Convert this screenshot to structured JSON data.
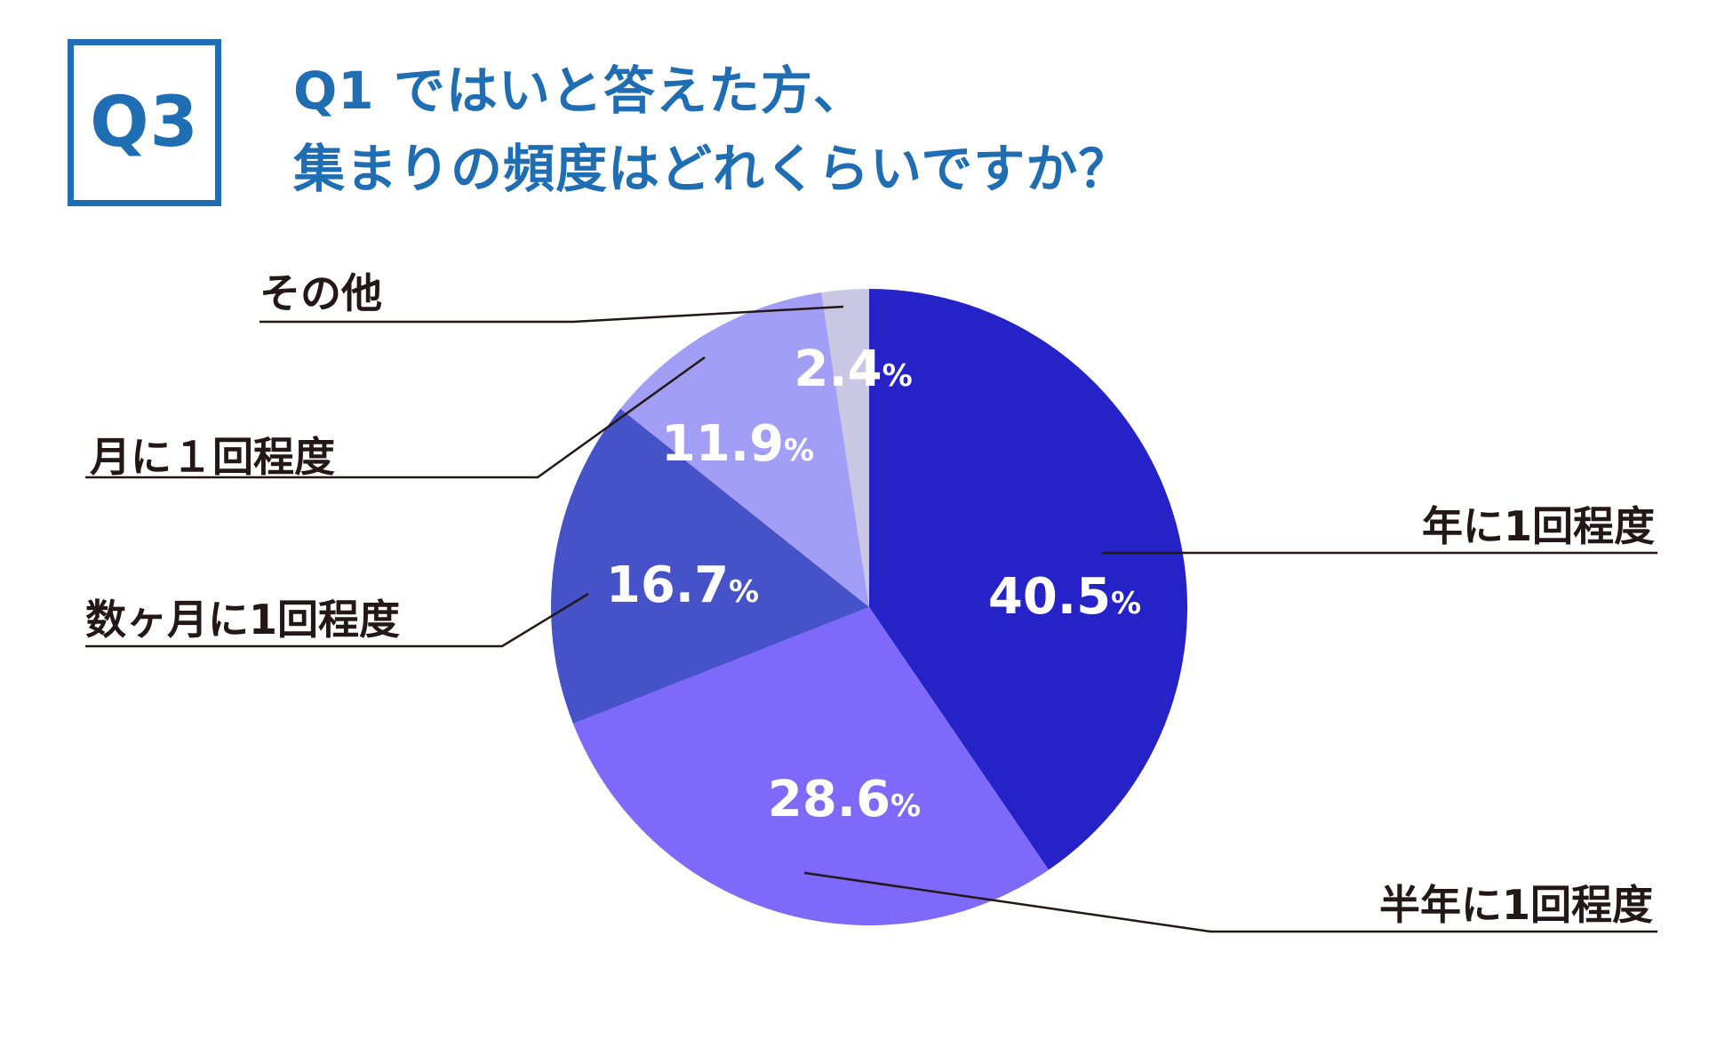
{
  "badge": "Q3",
  "title_lines": [
    "Q1 ではいと答えた方、",
    "集まりの頻度はどれくらいですか？"
  ],
  "chart_data": {
    "type": "pie",
    "title": "Q1 ではいと答えた方、集まりの頻度はどれくらいですか？",
    "unit": "%",
    "start": "12 o'clock, clockwise",
    "slices": [
      {
        "label": "年に1回程度",
        "value": 40.5,
        "display": "40.5",
        "color": "#2522c8"
      },
      {
        "label": "半年に1回程度",
        "value": 28.6,
        "display": "28.6",
        "color": "#7f69fb"
      },
      {
        "label": "数ヶ月に1回程度",
        "value": 16.7,
        "display": "16.7",
        "color": "#4552c8"
      },
      {
        "label": "月に１回程度",
        "value": 11.9,
        "display": "11.9",
        "color": "#a39ef5"
      },
      {
        "label": "その他",
        "value": 2.4,
        "display": "2.4",
        "color": "#c9c7e3"
      }
    ]
  }
}
